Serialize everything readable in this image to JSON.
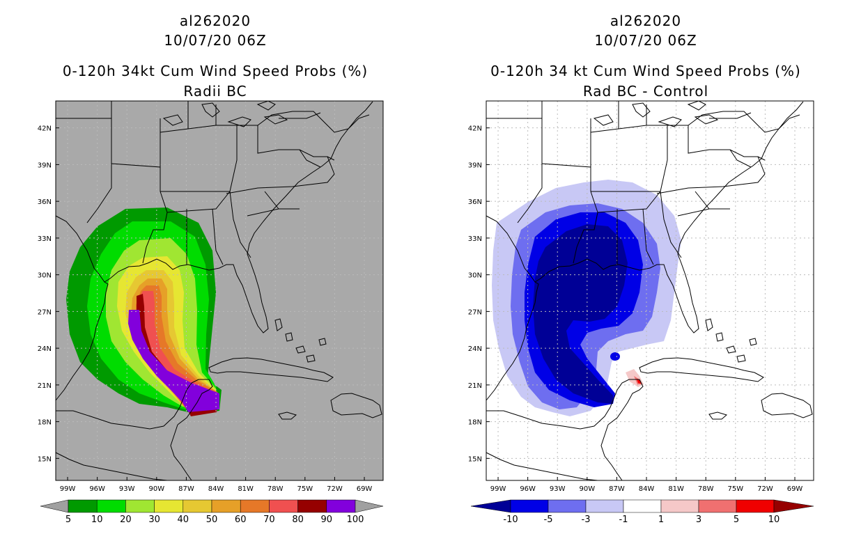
{
  "left": {
    "storm_id": "al262020",
    "datetime": "10/07/20 06Z",
    "title": "0-120h 34kt Cum Wind Speed Probs (%)",
    "subtitle": "Radii BC",
    "colorbar": {
      "labels": [
        "5",
        "10",
        "20",
        "30",
        "40",
        "50",
        "60",
        "70",
        "80",
        "90",
        "100"
      ],
      "colors": [
        "#009a00",
        "#00dc00",
        "#a0e632",
        "#e6e632",
        "#e6c832",
        "#e6a028",
        "#e67828",
        "#f05050",
        "#960000",
        "#8200dc"
      ],
      "under_color": "#a0a0a0",
      "over_color": "#a0a0a0"
    },
    "background_color": "#a9a9a9"
  },
  "right": {
    "storm_id": "al262020",
    "datetime": "10/07/20 06Z",
    "title": "0-120h 34 kt Cum Wind Speed Probs (%)",
    "subtitle": "Rad BC - Control",
    "colorbar": {
      "labels": [
        "-10",
        "-5",
        "-3",
        "-1",
        "1",
        "3",
        "5",
        "10"
      ],
      "colors": [
        "#0000e6",
        "#6e6ef0",
        "#c8c8f5",
        "#ffffff",
        "#f5c8c8",
        "#f07070",
        "#f00000"
      ],
      "under_color": "#000096",
      "over_color": "#960000"
    },
    "background_color": "#ffffff"
  },
  "axes": {
    "lat_labels": [
      "42N",
      "39N",
      "36N",
      "33N",
      "30N",
      "27N",
      "24N",
      "21N",
      "18N",
      "15N"
    ],
    "lon_labels": [
      "99W",
      "96W",
      "93W",
      "90W",
      "87W",
      "84W",
      "81W",
      "78W",
      "75W",
      "72W",
      "69W"
    ],
    "lat_range": [
      13.2,
      44.2
    ],
    "lon_range": [
      -100.2,
      -67.1
    ]
  },
  "colors": {
    "coastline": "#000000",
    "gridline": "#bbbbbb"
  }
}
